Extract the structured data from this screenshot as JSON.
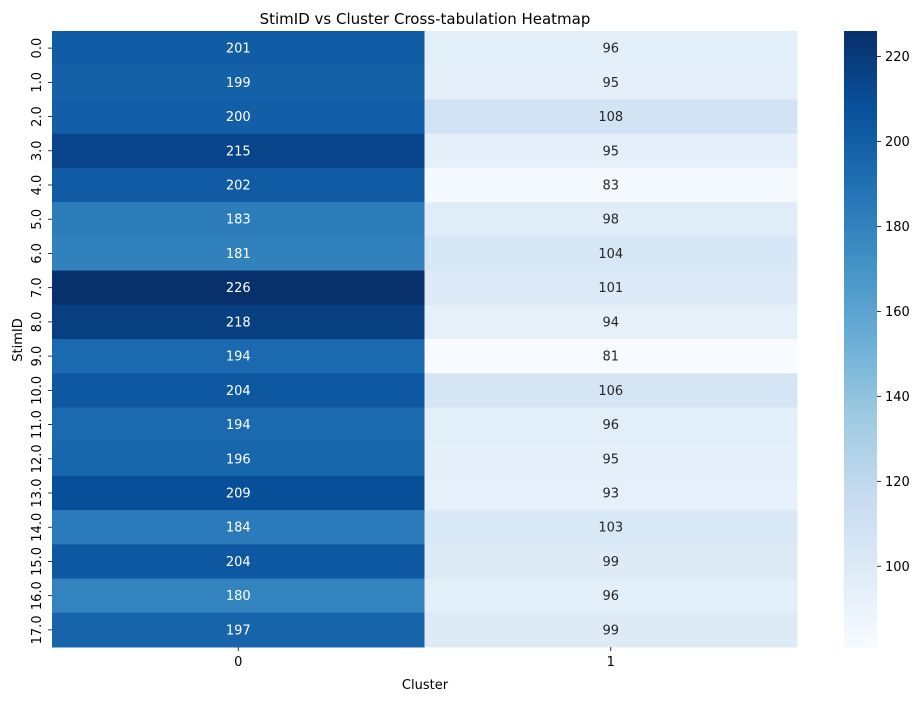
{
  "chart_data": {
    "type": "heatmap",
    "title": "StimID vs Cluster Cross-tabulation Heatmap",
    "xlabel": "Cluster",
    "ylabel": "StimID",
    "x_categories": [
      "0",
      "1"
    ],
    "y_categories": [
      "0.0",
      "1.0",
      "2.0",
      "3.0",
      "4.0",
      "5.0",
      "6.0",
      "7.0",
      "8.0",
      "9.0",
      "10.0",
      "11.0",
      "12.0",
      "13.0",
      "14.0",
      "15.0",
      "16.0",
      "17.0"
    ],
    "values": [
      [
        201,
        96
      ],
      [
        199,
        95
      ],
      [
        200,
        108
      ],
      [
        215,
        95
      ],
      [
        202,
        83
      ],
      [
        183,
        98
      ],
      [
        181,
        104
      ],
      [
        226,
        101
      ],
      [
        218,
        94
      ],
      [
        194,
        81
      ],
      [
        204,
        106
      ],
      [
        194,
        96
      ],
      [
        196,
        95
      ],
      [
        209,
        93
      ],
      [
        184,
        103
      ],
      [
        204,
        99
      ],
      [
        180,
        96
      ],
      [
        197,
        99
      ]
    ],
    "colormap": "Blues",
    "color_range": [
      81,
      226
    ],
    "colorbar_ticks": [
      100,
      120,
      140,
      160,
      180,
      200,
      220
    ],
    "colors": {
      "cmap_stops": [
        "#f7fbff",
        "#deebf7",
        "#c6dbef",
        "#9ecae1",
        "#6baed6",
        "#4292c6",
        "#2171b5",
        "#08519c",
        "#08306b"
      ],
      "text_light": "#ffffff",
      "text_dark": "#262626"
    }
  }
}
